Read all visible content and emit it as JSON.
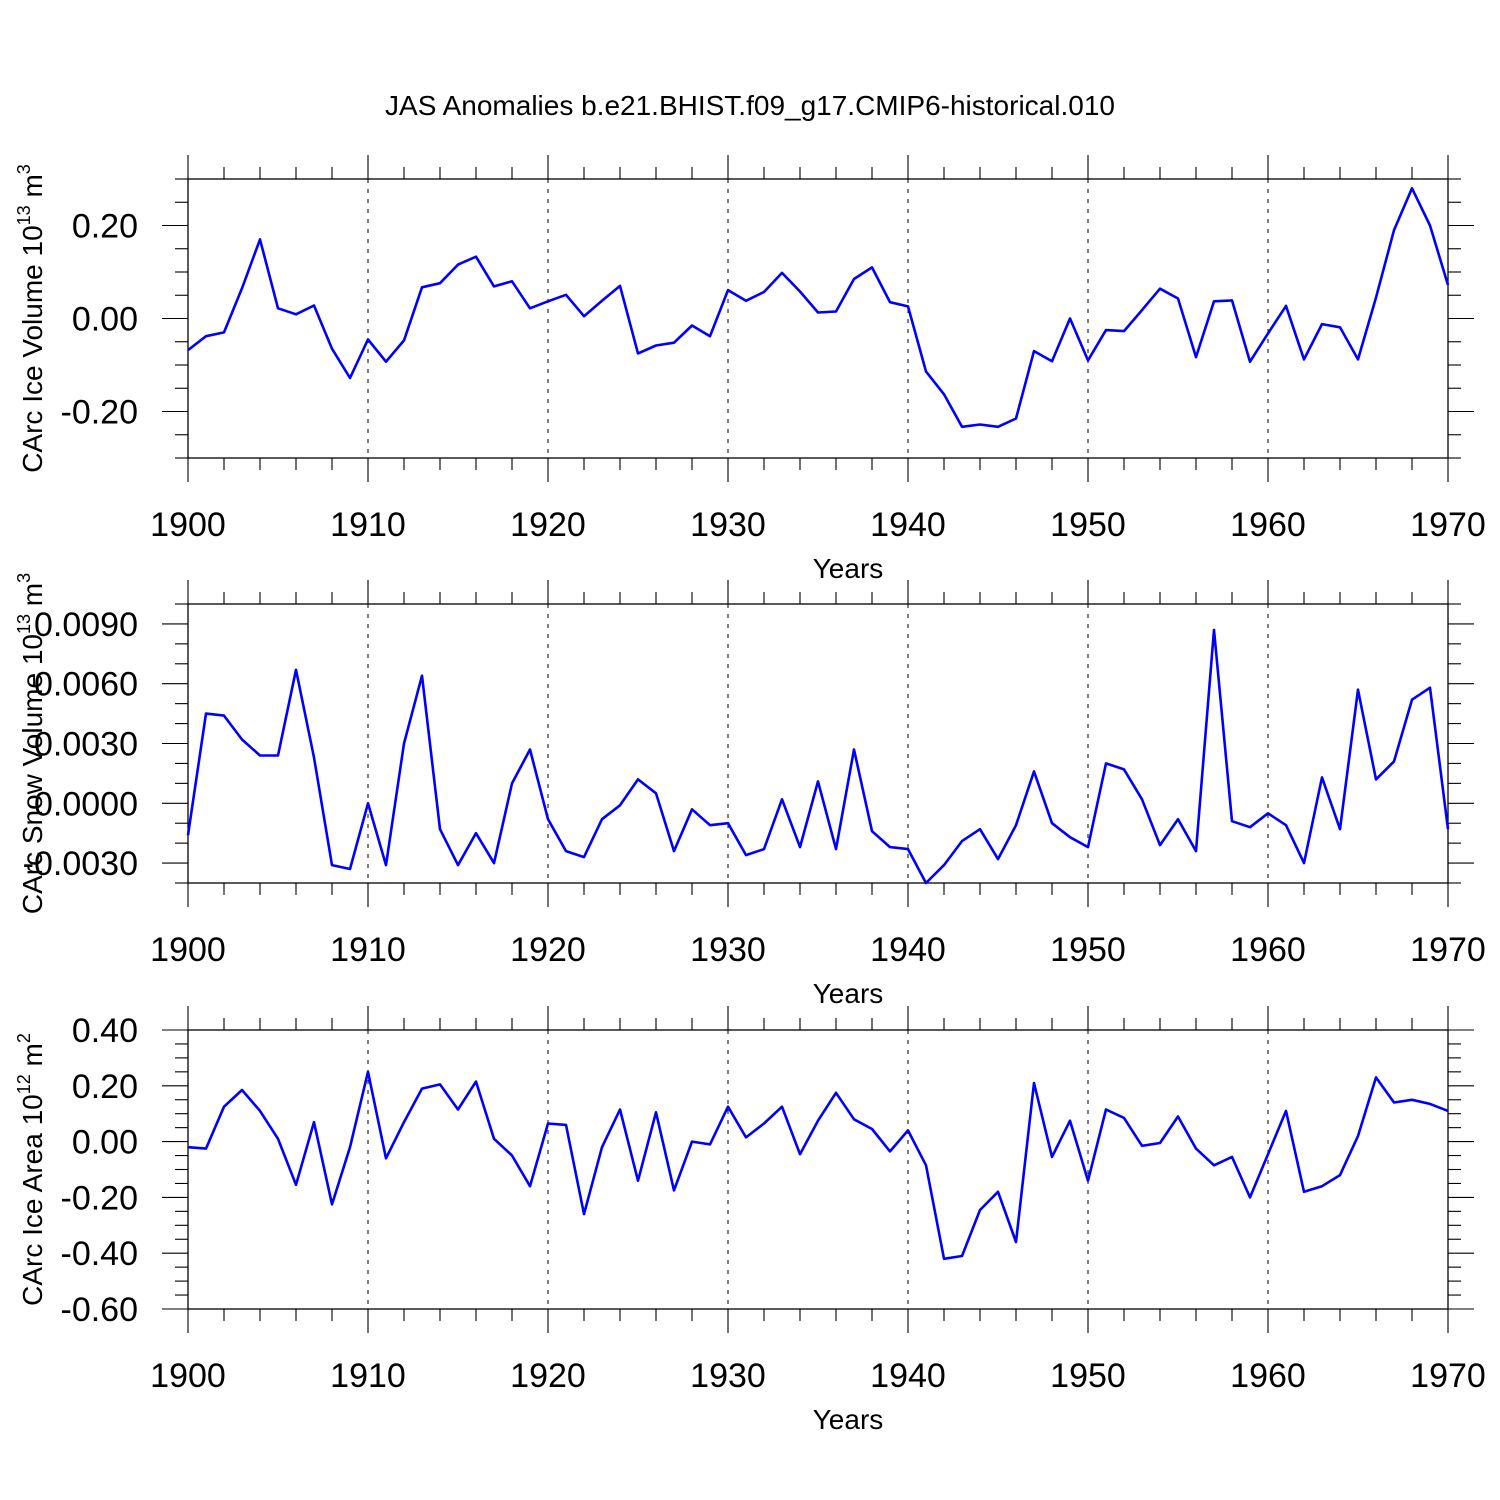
{
  "title": "JAS Anomalies b.e21.BHIST.f09_g17.CMIP6-historical.010",
  "chart_data": [
    {
      "type": "line",
      "ylabel_main": "CArc Ice Volume 10",
      "ylabel_sup": "13",
      "ylabel_unit": " m",
      "ylabel_unit_sup": "3",
      "xlabel": "Years",
      "xlim": [
        1900,
        1970
      ],
      "ylim": [
        -0.3,
        0.3
      ],
      "x_ticks": [
        1900,
        1910,
        1920,
        1930,
        1940,
        1950,
        1960,
        1970
      ],
      "x_tick_labels": [
        "1900",
        "1910",
        "1920",
        "1930",
        "1940",
        "1950",
        "1960",
        "1970"
      ],
      "y_ticks": [
        0.2,
        0.0,
        -0.2
      ],
      "y_tick_labels": [
        "0.20",
        "0.00",
        "-0.20"
      ],
      "y_minor_step": 0.05,
      "x": [
        1900,
        1901,
        1902,
        1903,
        1904,
        1905,
        1906,
        1907,
        1908,
        1909,
        1910,
        1911,
        1912,
        1913,
        1914,
        1915,
        1916,
        1917,
        1918,
        1919,
        1920,
        1921,
        1922,
        1923,
        1924,
        1925,
        1926,
        1927,
        1928,
        1929,
        1930,
        1931,
        1932,
        1933,
        1934,
        1935,
        1936,
        1937,
        1938,
        1939,
        1940,
        1941,
        1942,
        1943,
        1944,
        1945,
        1946,
        1947,
        1948,
        1949,
        1950,
        1951,
        1952,
        1953,
        1954,
        1955,
        1956,
        1957,
        1958,
        1959,
        1960,
        1961,
        1962,
        1963,
        1964,
        1965,
        1966,
        1967,
        1968,
        1969,
        1970
      ],
      "values": [
        -0.068,
        -0.038,
        -0.03,
        0.065,
        0.17,
        0.022,
        0.009,
        0.028,
        -0.065,
        -0.128,
        -0.045,
        -0.093,
        -0.047,
        0.067,
        0.076,
        0.116,
        0.133,
        0.069,
        0.08,
        0.022,
        0.037,
        0.051,
        0.005,
        0.038,
        0.07,
        -0.075,
        -0.058,
        -0.052,
        -0.015,
        -0.038,
        0.061,
        0.038,
        0.057,
        0.098,
        0.058,
        0.013,
        0.015,
        0.085,
        0.11,
        0.035,
        0.026,
        -0.114,
        -0.163,
        -0.233,
        -0.228,
        -0.233,
        -0.215,
        -0.07,
        -0.092,
        0.0,
        -0.09,
        -0.025,
        -0.027,
        0.018,
        0.064,
        0.043,
        -0.083,
        0.037,
        0.039,
        -0.093,
        -0.032,
        0.027,
        -0.088,
        -0.012,
        -0.019,
        -0.088,
        0.045,
        0.19,
        0.28,
        0.2,
        0.072
      ]
    },
    {
      "type": "line",
      "ylabel_main": "CArc Snow Volume 10",
      "ylabel_sup": "13",
      "ylabel_unit": " m",
      "ylabel_unit_sup": "3",
      "xlabel": "Years",
      "xlim": [
        1900,
        1970
      ],
      "ylim": [
        -0.004,
        0.01
      ],
      "x_ticks": [
        1900,
        1910,
        1920,
        1930,
        1940,
        1950,
        1960,
        1970
      ],
      "x_tick_labels": [
        "1900",
        "1910",
        "1920",
        "1930",
        "1940",
        "1950",
        "1960",
        "1970"
      ],
      "y_ticks": [
        0.009,
        0.006,
        0.003,
        0.0,
        -0.003
      ],
      "y_tick_labels": [
        "0.0090",
        "0.0060",
        "0.0030",
        "0.0000",
        "-0.0030"
      ],
      "y_minor_step": 0.001,
      "x": [
        1900,
        1901,
        1902,
        1903,
        1904,
        1905,
        1906,
        1907,
        1908,
        1909,
        1910,
        1911,
        1912,
        1913,
        1914,
        1915,
        1916,
        1917,
        1918,
        1919,
        1920,
        1921,
        1922,
        1923,
        1924,
        1925,
        1926,
        1927,
        1928,
        1929,
        1930,
        1931,
        1932,
        1933,
        1934,
        1935,
        1936,
        1937,
        1938,
        1939,
        1940,
        1941,
        1942,
        1943,
        1944,
        1945,
        1946,
        1947,
        1948,
        1949,
        1950,
        1951,
        1952,
        1953,
        1954,
        1955,
        1956,
        1957,
        1958,
        1959,
        1960,
        1961,
        1962,
        1963,
        1964,
        1965,
        1966,
        1967,
        1968,
        1969,
        1970
      ],
      "values": [
        -0.0016,
        0.0045,
        0.0044,
        0.0032,
        0.0024,
        0.0024,
        0.0067,
        0.0023,
        -0.0031,
        -0.0033,
        0.0,
        -0.0031,
        0.003,
        0.0064,
        -0.0013,
        -0.0031,
        -0.0015,
        -0.003,
        0.001,
        0.0027,
        -0.0008,
        -0.0024,
        -0.0027,
        -0.0008,
        -0.0001,
        0.0012,
        0.0005,
        -0.0024,
        -0.0003,
        -0.0011,
        -0.001,
        -0.0026,
        -0.0023,
        0.0002,
        -0.0022,
        0.0011,
        -0.0023,
        0.0027,
        -0.0014,
        -0.0022,
        -0.0023,
        -0.004,
        -0.0031,
        -0.0019,
        -0.0013,
        -0.0028,
        -0.0011,
        0.0016,
        -0.001,
        -0.0017,
        -0.0022,
        0.002,
        0.0017,
        0.0002,
        -0.0021,
        -0.0008,
        -0.0024,
        0.0087,
        -0.0009,
        -0.0012,
        -0.0005,
        -0.0011,
        -0.003,
        0.0013,
        -0.0013,
        0.0057,
        0.0012,
        0.0021,
        0.0052,
        0.0058,
        -0.0013
      ]
    },
    {
      "type": "line",
      "ylabel_main": "CArc Ice Area 10",
      "ylabel_sup": "12",
      "ylabel_unit": " m",
      "ylabel_unit_sup": "2",
      "xlabel": "Years",
      "xlim": [
        1900,
        1970
      ],
      "ylim": [
        -0.6,
        0.4
      ],
      "x_ticks": [
        1900,
        1910,
        1920,
        1930,
        1940,
        1950,
        1960,
        1970
      ],
      "x_tick_labels": [
        "1900",
        "1910",
        "1920",
        "1930",
        "1940",
        "1950",
        "1960",
        "1970"
      ],
      "y_ticks": [
        0.4,
        0.2,
        0.0,
        -0.2,
        -0.4,
        -0.6
      ],
      "y_tick_labels": [
        "0.40",
        "0.20",
        "0.00",
        "-0.20",
        "-0.40",
        "-0.60"
      ],
      "y_minor_step": 0.05,
      "x": [
        1900,
        1901,
        1902,
        1903,
        1904,
        1905,
        1906,
        1907,
        1908,
        1909,
        1910,
        1911,
        1912,
        1913,
        1914,
        1915,
        1916,
        1917,
        1918,
        1919,
        1920,
        1921,
        1922,
        1923,
        1924,
        1925,
        1926,
        1927,
        1928,
        1929,
        1930,
        1931,
        1932,
        1933,
        1934,
        1935,
        1936,
        1937,
        1938,
        1939,
        1940,
        1941,
        1942,
        1943,
        1944,
        1945,
        1946,
        1947,
        1948,
        1949,
        1950,
        1951,
        1952,
        1953,
        1954,
        1955,
        1956,
        1957,
        1958,
        1959,
        1960,
        1961,
        1962,
        1963,
        1964,
        1965,
        1966,
        1967,
        1968,
        1969,
        1970
      ],
      "values": [
        -0.02,
        -0.025,
        0.125,
        0.185,
        0.11,
        0.01,
        -0.155,
        0.07,
        -0.225,
        -0.02,
        0.25,
        -0.06,
        0.07,
        0.19,
        0.205,
        0.115,
        0.215,
        0.01,
        -0.05,
        -0.16,
        0.065,
        0.06,
        -0.26,
        -0.02,
        0.115,
        -0.14,
        0.105,
        -0.175,
        0.0,
        -0.01,
        0.125,
        0.015,
        0.065,
        0.125,
        -0.045,
        0.075,
        0.175,
        0.08,
        0.045,
        -0.035,
        0.04,
        -0.085,
        -0.42,
        -0.41,
        -0.245,
        -0.18,
        -0.36,
        0.21,
        -0.055,
        0.075,
        -0.14,
        0.115,
        0.085,
        -0.015,
        -0.005,
        0.09,
        -0.025,
        -0.085,
        -0.055,
        -0.2,
        -0.045,
        0.11,
        -0.18,
        -0.16,
        -0.12,
        0.02,
        0.23,
        0.14,
        0.15,
        0.135,
        0.11
      ]
    }
  ]
}
